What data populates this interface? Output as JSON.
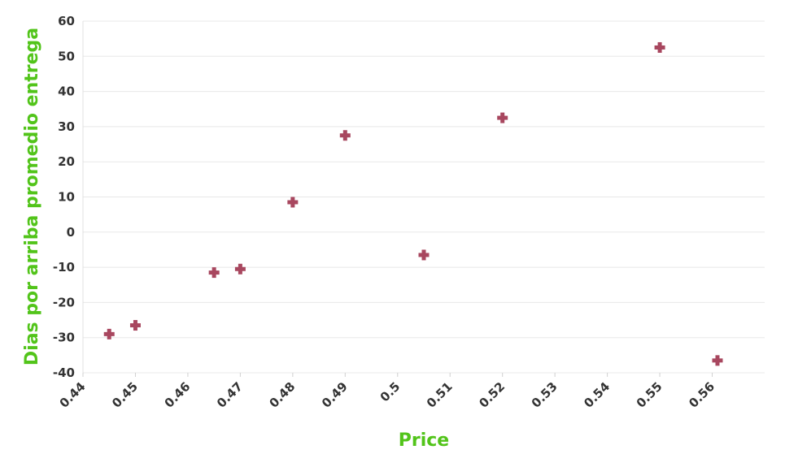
{
  "chart_data": {
    "type": "scatter",
    "title": "",
    "xlabel": "Price",
    "ylabel": "Dias por arriba promedio entrega",
    "xlim": [
      0.44,
      0.57
    ],
    "ylim": [
      -40,
      60
    ],
    "x_ticks": [
      "0.44",
      "0.45",
      "0.46",
      "0.47",
      "0.48",
      "0.49",
      "0.5",
      "0.51",
      "0.52",
      "0.53",
      "0.54",
      "0.55",
      "0.56"
    ],
    "y_ticks": [
      "60",
      "50",
      "40",
      "30",
      "20",
      "10",
      "0",
      "-10",
      "-20",
      "-30",
      "-40"
    ],
    "grid": true,
    "marker": "plus",
    "colors": {
      "marker": "#a8475f",
      "axis_title": "#52c41a"
    },
    "series": [
      {
        "points": [
          {
            "x": 0.445,
            "y": -29
          },
          {
            "x": 0.45,
            "y": -26.5
          },
          {
            "x": 0.465,
            "y": -11.5
          },
          {
            "x": 0.47,
            "y": -10.5
          },
          {
            "x": 0.48,
            "y": 8.5
          },
          {
            "x": 0.49,
            "y": 27.5
          },
          {
            "x": 0.505,
            "y": -6.5
          },
          {
            "x": 0.52,
            "y": 32.5
          },
          {
            "x": 0.55,
            "y": 52.5
          },
          {
            "x": 0.561,
            "y": -36.5
          }
        ]
      }
    ]
  }
}
